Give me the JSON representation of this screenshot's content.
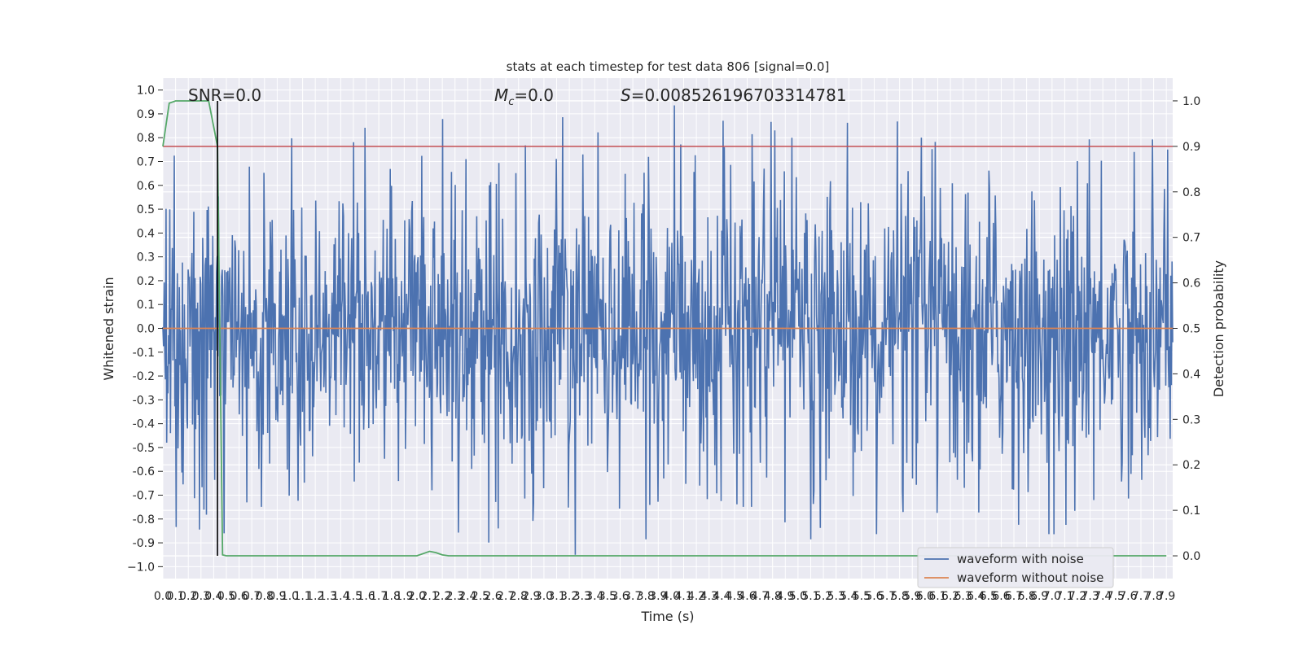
{
  "chart_data": {
    "type": "line",
    "title": "stats at each timestep for test data 806 [signal=0.0]",
    "xlabel": "Time (s)",
    "ylabel_left": "Whitened strain",
    "ylabel_right": "Detection probability",
    "xlim": [
      0.0,
      7.95
    ],
    "ylim_left": [
      -1.05,
      1.05
    ],
    "ylim_right": [
      -0.05,
      1.05
    ],
    "grid": true,
    "legend_position": "lower right",
    "x_ticks": [
      "0.0",
      "0.1",
      "0.2",
      "0.3",
      "0.4",
      "0.5",
      "0.6",
      "0.7",
      "0.8",
      "0.9",
      "1.0",
      "1.1",
      "1.2",
      "1.3",
      "1.4",
      "1.5",
      "1.6",
      "1.7",
      "1.8",
      "1.9",
      "2.0",
      "2.1",
      "2.2",
      "2.3",
      "2.4",
      "2.5",
      "2.6",
      "2.7",
      "2.8",
      "2.9",
      "3.0",
      "3.1",
      "3.2",
      "3.3",
      "3.4",
      "3.5",
      "3.6",
      "3.7",
      "3.8",
      "3.9",
      "4.0",
      "4.1",
      "4.2",
      "4.3",
      "4.4",
      "4.5",
      "4.6",
      "4.7",
      "4.8",
      "4.9",
      "5.0",
      "5.1",
      "5.2",
      "5.3",
      "5.4",
      "5.5",
      "5.6",
      "5.7",
      "5.8",
      "5.9",
      "6.0",
      "6.1",
      "6.2",
      "6.3",
      "6.4",
      "6.5",
      "6.6",
      "6.7",
      "6.8",
      "6.9",
      "7.0",
      "7.1",
      "7.2",
      "7.3",
      "7.4",
      "7.5",
      "7.6",
      "7.7",
      "7.8",
      "7.9"
    ],
    "y_ticks_left": [
      "1.0",
      "0.9",
      "0.8",
      "0.7",
      "0.6",
      "0.5",
      "0.4",
      "0.3",
      "0.2",
      "0.1",
      "0.0",
      "-0.1",
      "-0.2",
      "-0.3",
      "-0.4",
      "-0.5",
      "-0.6",
      "-0.7",
      "-0.8",
      "-0.9",
      "−1.0"
    ],
    "y_ticks_right": [
      "1.0",
      "0.9",
      "0.8",
      "0.7",
      "0.6",
      "0.5",
      "0.4",
      "0.3",
      "0.2",
      "0.1",
      "0.0"
    ],
    "annotations": {
      "snr": "SNR=0.0",
      "mc_symbol": "M",
      "mc_sub": "c",
      "mc_value": "=0.0",
      "s_symbol": "S",
      "s_value": "=0.008526196703314781"
    },
    "threshold_right": 0.9,
    "marker_time": 0.43,
    "series": [
      {
        "name": "waveform with noise",
        "color": "#4c72b0",
        "axis": "left",
        "description_stats": {
          "mean": 0.0,
          "typical_abs": 0.45,
          "max": 1.0,
          "min": -0.95,
          "n": 1600
        }
      },
      {
        "name": "waveform without noise",
        "color": "#dd8452",
        "axis": "left",
        "constant_value": 0.0
      },
      {
        "name": "",
        "color": "#55a868",
        "axis": "right",
        "x": [
          0.0,
          0.05,
          0.1,
          0.2,
          0.3,
          0.36,
          0.43,
          0.47,
          0.5,
          1.5,
          2.0,
          2.05,
          2.1,
          2.15,
          2.2,
          2.25,
          7.9
        ],
        "y": [
          0.9,
          0.995,
          1.0,
          1.0,
          1.0,
          1.0,
          0.9,
          0.002,
          0.0,
          0.0,
          0.0,
          0.005,
          0.01,
          0.007,
          0.002,
          0.0,
          0.0
        ]
      }
    ],
    "threshold_color": "#c44e52",
    "marker_color": "#000000"
  }
}
